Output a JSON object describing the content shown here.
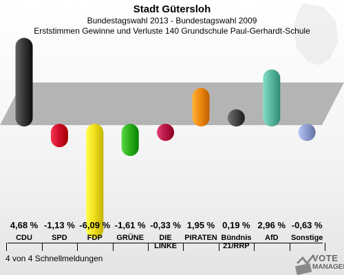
{
  "header": {
    "title": "Stadt Gütersloh",
    "subtitle": "Bundestagswahl 2013 - Bundestagswahl 2009",
    "subtitle2": "Erststimmen Gewinne und Verluste 140 Grundschule Paul-Gerhardt-Schule"
  },
  "footer": {
    "text": "4 von 4 Schnellmeldungen"
  },
  "logo": {
    "line1": "VOTE",
    "line2": "MANAGER"
  },
  "colors": {
    "CDU": "#3a3a3a",
    "SPD": "#d0102a",
    "FDP": "#f0e020",
    "GRÜNE": "#2fb01c",
    "DIE LINKE": "#b9184a",
    "PIRATEN": "#ee8a10",
    "Bündnis 21/RRP": "#4a4a4a",
    "AfD": "#5cb8a0",
    "Sonstige": "#8f9fcf"
  },
  "chart_data": {
    "type": "bar",
    "title": "Stadt Gütersloh",
    "categories": [
      "CDU",
      "SPD",
      "FDP",
      "GRÜNE",
      "DIE LINKE",
      "PIRATEN",
      "Bündnis 21/RRP",
      "AfD",
      "Sonstige"
    ],
    "category_labels": [
      "CDU",
      "SPD",
      "FDP",
      "GRÜNE",
      "DIE\nLINKE",
      "PIRATEN",
      "Bündnis\n21/RRP",
      "AfD",
      "Sonstige"
    ],
    "values": [
      4.68,
      -1.13,
      -6.09,
      -1.61,
      -0.33,
      1.95,
      0.19,
      2.96,
      -0.63
    ],
    "value_labels": [
      "4,68 %",
      "-1,13 %",
      "-6,09 %",
      "-1,61 %",
      "-0,33 %",
      "1,95 %",
      "0,19 %",
      "2,96 %",
      "-0,63 %"
    ],
    "ylim": [
      -6.09,
      4.68
    ]
  }
}
